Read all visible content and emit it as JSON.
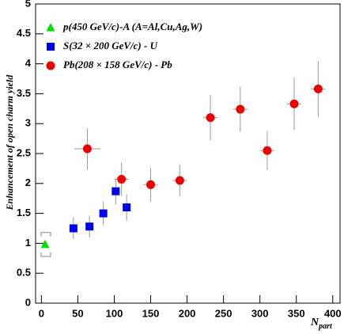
{
  "chart_data": {
    "type": "scatter",
    "y_label": "Enhancement of open charm yield",
    "x_label": "N",
    "x_label_sub": "part",
    "xlim": [
      -8,
      410
    ],
    "xticks": [
      0,
      50,
      100,
      150,
      200,
      250,
      300,
      350,
      400
    ],
    "ylim": [
      0,
      5
    ],
    "yticks": [
      0,
      0.5,
      1,
      1.5,
      2,
      2.5,
      3,
      3.5,
      4,
      4.5,
      5
    ],
    "legend": "top-left",
    "series": [
      {
        "name": "p(450 GeV/c)-A (A=Al,Cu,Ag,W)",
        "color": "#00e000",
        "marker": "triangle",
        "error_style": "bracket",
        "x": [
          5
        ],
        "values": [
          0.98
        ],
        "yerr": [
          0.2
        ]
      },
      {
        "name": "S(32 × 200 GeV/c) - U",
        "color": "#0000ee",
        "marker": "square",
        "error_style": "bar",
        "x": [
          44,
          66,
          85,
          102,
          117
        ],
        "values": [
          1.25,
          1.28,
          1.5,
          1.87,
          1.6
        ],
        "yerr": [
          0.18,
          0.18,
          0.2,
          0.22,
          0.22
        ]
      },
      {
        "name": "Pb(208 × 158 GeV/c) - Pb",
        "color": "#ee0000",
        "marker": "circle",
        "error_style": "bar",
        "x": [
          63,
          110,
          150,
          190,
          232,
          273,
          310,
          347,
          380
        ],
        "values": [
          2.58,
          2.07,
          1.98,
          2.05,
          3.1,
          3.24,
          2.55,
          3.33,
          3.58
        ],
        "yerr": [
          0.35,
          0.28,
          0.28,
          0.27,
          0.38,
          0.38,
          0.33,
          0.44,
          0.47
        ],
        "xerr": [
          18,
          10,
          10,
          10,
          10,
          10,
          10,
          10,
          10
        ]
      }
    ]
  }
}
